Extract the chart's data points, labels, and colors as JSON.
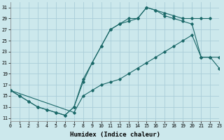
{
  "xlabel": "Humidex (Indice chaleur)",
  "xlim": [
    0,
    23
  ],
  "ylim": [
    10.5,
    32
  ],
  "xticks": [
    0,
    1,
    2,
    3,
    4,
    5,
    6,
    7,
    8,
    9,
    10,
    11,
    12,
    13,
    14,
    15,
    16,
    17,
    18,
    19,
    20,
    21,
    22,
    23
  ],
  "yticks": [
    11,
    13,
    15,
    17,
    19,
    21,
    23,
    25,
    27,
    29,
    31
  ],
  "bg_color": "#cce8ec",
  "grid_color": "#aacdd8",
  "line_color": "#1a6868",
  "curve1_x": [
    0,
    1,
    2,
    3,
    4,
    5,
    6,
    7,
    8,
    9,
    10,
    11,
    12,
    13,
    14,
    15,
    16,
    17,
    18,
    19,
    20,
    21,
    22
  ],
  "curve1_y": [
    16,
    15,
    14,
    13,
    12.5,
    12,
    11.5,
    13,
    17.5,
    21,
    24,
    27,
    28,
    28.5,
    29,
    31,
    30.5,
    30,
    29.5,
    29,
    29,
    29,
    29
  ],
  "curve2_x": [
    0,
    1,
    2,
    3,
    4,
    5,
    6,
    7,
    8,
    9,
    10,
    11,
    12,
    13,
    14,
    15,
    16,
    17,
    18,
    19,
    20,
    21,
    22,
    23
  ],
  "curve2_y": [
    16,
    15,
    14,
    13,
    12.5,
    12,
    11.5,
    13,
    18,
    21,
    24,
    27,
    28,
    29,
    29,
    31,
    30.5,
    29.5,
    29,
    28.5,
    28,
    22,
    22,
    22
  ],
  "curve3_x": [
    0,
    7,
    8,
    9,
    10,
    11,
    12,
    13,
    14,
    15,
    16,
    17,
    18,
    19,
    20,
    21,
    22,
    23
  ],
  "curve3_y": [
    16,
    12,
    15,
    16,
    17,
    17.5,
    18,
    19,
    20,
    21,
    22,
    23,
    24,
    25,
    26,
    22,
    22,
    20
  ]
}
